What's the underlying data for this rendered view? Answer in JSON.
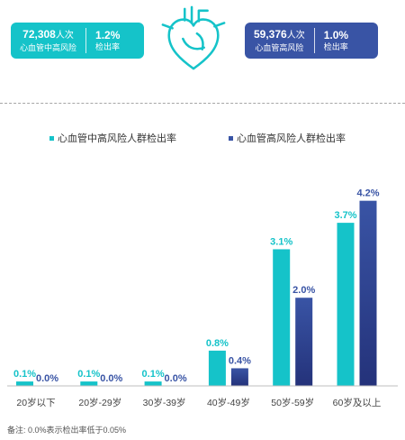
{
  "summary": {
    "left": {
      "count": "72,308",
      "unit": "人次",
      "group": "心血管中高风险",
      "rate": "1.2%",
      "rate_label": "检出率"
    },
    "right": {
      "count": "59,376",
      "unit": "人次",
      "group": "心血管高风险",
      "rate": "1.0%",
      "rate_label": "检出率"
    }
  },
  "icon": "heart-icon",
  "colors": {
    "teal": "#15c3c9",
    "navy": "#3954a5",
    "navy_dark": "#24327a"
  },
  "footnote": "备注:   0.0%表示检出率低于0.05%",
  "chart_data": {
    "type": "bar",
    "categories": [
      "20岁以下",
      "20岁-29岁",
      "30岁-39岁",
      "40岁-49岁",
      "50岁-59岁",
      "60岁及以上"
    ],
    "series": [
      {
        "name": "心血管中高风险人群检出率",
        "values": [
          0.1,
          0.1,
          0.1,
          0.8,
          3.1,
          3.7
        ],
        "labels": [
          "0.1%",
          "0.1%",
          "0.1%",
          "0.8%",
          "3.1%",
          "3.7%"
        ],
        "color": "#15c3c9"
      },
      {
        "name": "心血管高风险人群检出率",
        "values": [
          0.0,
          0.0,
          0.0,
          0.4,
          2.0,
          4.2
        ],
        "labels": [
          "0.0%",
          "0.0%",
          "0.0%",
          "0.4%",
          "2.0%",
          "4.2%"
        ],
        "color": "#3954a5"
      }
    ],
    "ylim": [
      0,
      4.5
    ],
    "legend": "top",
    "grid": false
  }
}
